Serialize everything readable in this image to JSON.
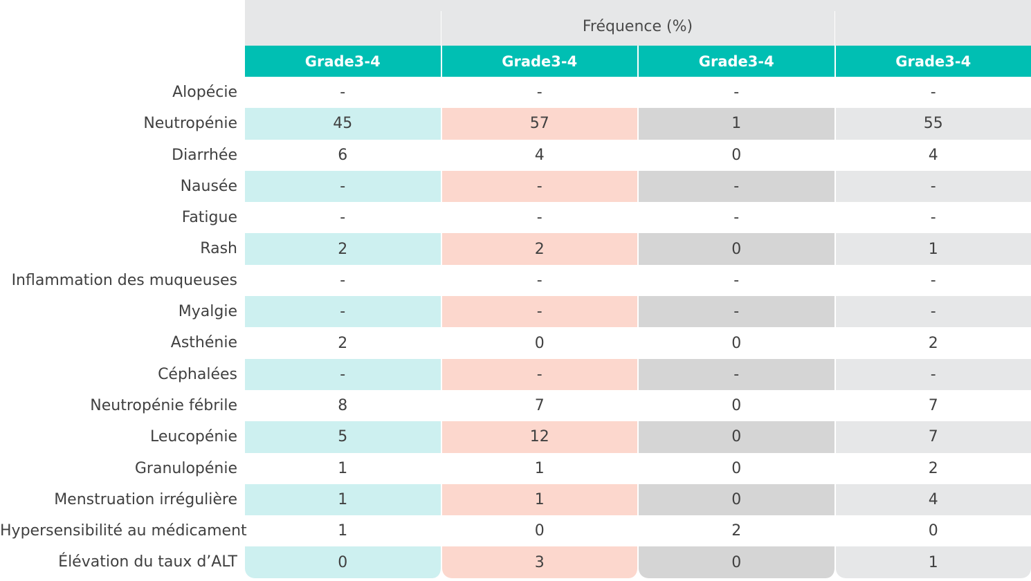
{
  "table": {
    "group_header": "Fréquence (%)",
    "column_headers": [
      "Grade3-4",
      "Grade3-4",
      "Grade3-4",
      "Grade3-4"
    ],
    "rows": [
      {
        "label": "Alopécie",
        "values": [
          "-",
          "-",
          "-",
          "-"
        ]
      },
      {
        "label": "Neutropénie",
        "values": [
          "45",
          "57",
          "1",
          "55"
        ]
      },
      {
        "label": "Diarrhée",
        "values": [
          "6",
          "4",
          "0",
          "4"
        ]
      },
      {
        "label": "Nausée",
        "values": [
          "-",
          "-",
          "-",
          "-"
        ]
      },
      {
        "label": "Fatigue",
        "values": [
          "-",
          "-",
          "-",
          "-"
        ]
      },
      {
        "label": "Rash",
        "values": [
          "2",
          "2",
          "0",
          "1"
        ]
      },
      {
        "label": "Inflammation des muqueuses",
        "values": [
          "-",
          "-",
          "-",
          "-"
        ]
      },
      {
        "label": "Myalgie",
        "values": [
          "-",
          "-",
          "-",
          "-"
        ]
      },
      {
        "label": "Asthénie",
        "values": [
          "2",
          "0",
          "0",
          "2"
        ]
      },
      {
        "label": "Céphalées",
        "values": [
          "-",
          "-",
          "-",
          "-"
        ]
      },
      {
        "label": "Neutropénie fébrile",
        "values": [
          "8",
          "7",
          "0",
          "7"
        ]
      },
      {
        "label": "Leucopénie",
        "values": [
          "5",
          "12",
          "0",
          "7"
        ]
      },
      {
        "label": "Granulopénie",
        "values": [
          "1",
          "1",
          "0",
          "2"
        ]
      },
      {
        "label": "Menstruation irrégulière",
        "values": [
          "1",
          "1",
          "0",
          "4"
        ]
      },
      {
        "label": "Hypersensibilité au médicament",
        "values": [
          "1",
          "0",
          "2",
          "0"
        ]
      },
      {
        "label": "Élévation du taux d’ALT",
        "values": [
          "0",
          "3",
          "0",
          "1"
        ]
      }
    ]
  },
  "colors": {
    "header_teal": "#00bfb3",
    "col1_tint": "#cdf0f0",
    "col2_tint": "#fcd7cd",
    "col3_tint": "#d5d5d5",
    "col4_tint": "#e6e7e8"
  }
}
